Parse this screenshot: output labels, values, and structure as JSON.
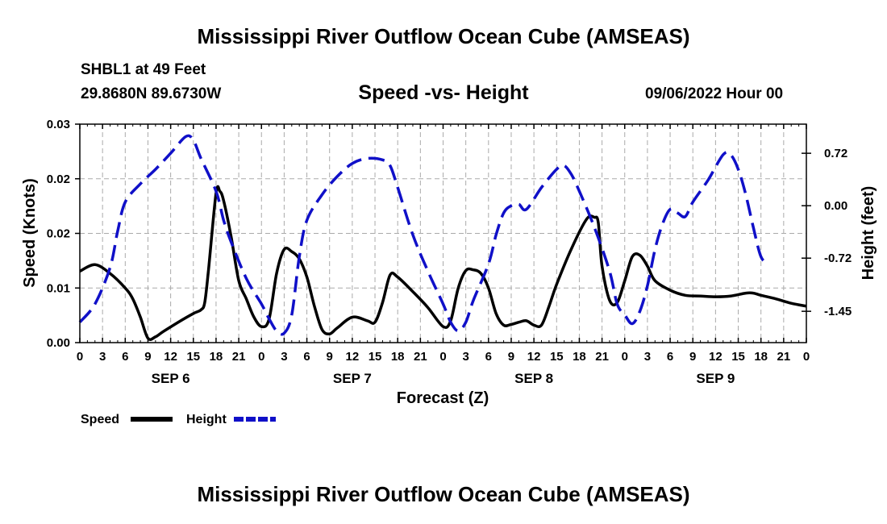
{
  "header": {
    "title": "Mississippi River Outflow Ocean Cube (AMSEAS)",
    "station": "SHBL1 at 49 Feet",
    "coords": "29.8680N  89.6730W",
    "subtitle": "Speed -vs- Height",
    "date": "09/06/2022 Hour 00"
  },
  "footer": {
    "title": "Mississippi River Outflow Ocean Cube (AMSEAS)"
  },
  "chart_data": {
    "type": "line",
    "title": "Speed -vs- Height",
    "xlabel": "Forecast (Z)",
    "ylabel": "Speed (Knots)",
    "y2label": "Height (feet)",
    "x_unit": "hours from 09/06 00Z",
    "xlim": [
      0,
      96
    ],
    "ylim": [
      0,
      0.03
    ],
    "y2lim": [
      -1.88,
      1.12
    ],
    "x_tick_values": [
      0,
      3,
      6,
      9,
      12,
      15,
      18,
      21,
      24,
      27,
      30,
      33,
      36,
      39,
      42,
      45,
      48,
      51,
      54,
      57,
      60,
      63,
      66,
      69,
      72,
      75,
      78,
      81,
      84,
      87,
      90,
      93,
      96
    ],
    "x_tick_labels": [
      "0",
      "3",
      "6",
      "9",
      "12",
      "15",
      "18",
      "21",
      "0",
      "3",
      "6",
      "9",
      "12",
      "15",
      "18",
      "21",
      "0",
      "3",
      "6",
      "9",
      "12",
      "15",
      "18",
      "21",
      "0",
      "3",
      "6",
      "9",
      "12",
      "15",
      "18",
      "21",
      "0"
    ],
    "day_labels": [
      {
        "x": 12,
        "label": "SEP 6"
      },
      {
        "x": 36,
        "label": "SEP 7"
      },
      {
        "x": 60,
        "label": "SEP 8"
      },
      {
        "x": 84,
        "label": "SEP 9"
      }
    ],
    "y_ticks": [
      {
        "v": 0.0,
        "label": "0.00"
      },
      {
        "v": 0.0075,
        "label": "0.01"
      },
      {
        "v": 0.015,
        "label": "0.02"
      },
      {
        "v": 0.0225,
        "label": "0.02"
      },
      {
        "v": 0.03,
        "label": "0.03"
      }
    ],
    "y2_ticks": [
      {
        "v": -1.45,
        "label": "-1.45"
      },
      {
        "v": -0.72,
        "label": "-0.72"
      },
      {
        "v": 0.0,
        "label": "0.00"
      },
      {
        "v": 0.72,
        "label": "0.72"
      }
    ],
    "series": [
      {
        "name": "Speed",
        "color": "#000000",
        "style": "solid",
        "axis": "left",
        "points": [
          [
            0,
            0.0098
          ],
          [
            2,
            0.0107
          ],
          [
            4,
            0.0095
          ],
          [
            6,
            0.0075
          ],
          [
            7,
            0.006
          ],
          [
            8,
            0.0035
          ],
          [
            9,
            0.0006
          ],
          [
            10,
            0.0008
          ],
          [
            11,
            0.0015
          ],
          [
            13,
            0.0028
          ],
          [
            15,
            0.004
          ],
          [
            16,
            0.0045
          ],
          [
            16.5,
            0.0055
          ],
          [
            17,
            0.01
          ],
          [
            18,
            0.0205
          ],
          [
            18.5,
            0.0208
          ],
          [
            19,
            0.0195
          ],
          [
            20,
            0.0145
          ],
          [
            21,
            0.0085
          ],
          [
            22,
            0.006
          ],
          [
            23,
            0.0035
          ],
          [
            24,
            0.0022
          ],
          [
            25,
            0.0032
          ],
          [
            26,
            0.0095
          ],
          [
            27,
            0.0128
          ],
          [
            28,
            0.0125
          ],
          [
            29,
            0.0115
          ],
          [
            30,
            0.009
          ],
          [
            31,
            0.005
          ],
          [
            32,
            0.0018
          ],
          [
            33,
            0.0012
          ],
          [
            34,
            0.002
          ],
          [
            36,
            0.0035
          ],
          [
            38,
            0.003
          ],
          [
            39,
            0.0028
          ],
          [
            40,
            0.0055
          ],
          [
            41,
            0.0093
          ],
          [
            42,
            0.009
          ],
          [
            44,
            0.007
          ],
          [
            46,
            0.0048
          ],
          [
            48,
            0.0022
          ],
          [
            49,
            0.003
          ],
          [
            50,
            0.0075
          ],
          [
            51,
            0.0099
          ],
          [
            52,
            0.01
          ],
          [
            53,
            0.0095
          ],
          [
            54,
            0.0075
          ],
          [
            55,
            0.004
          ],
          [
            56,
            0.0024
          ],
          [
            57,
            0.0025
          ],
          [
            58,
            0.0028
          ],
          [
            59,
            0.003
          ],
          [
            60,
            0.0024
          ],
          [
            61,
            0.0024
          ],
          [
            62,
            0.005
          ],
          [
            63,
            0.008
          ],
          [
            65,
            0.013
          ],
          [
            67,
            0.017
          ],
          [
            68,
            0.0172
          ],
          [
            68.5,
            0.0165
          ],
          [
            69,
            0.0105
          ],
          [
            70,
            0.0058
          ],
          [
            71,
            0.0055
          ],
          [
            72,
            0.0085
          ],
          [
            73,
            0.0118
          ],
          [
            74,
            0.012
          ],
          [
            75,
            0.0105
          ],
          [
            76,
            0.0085
          ],
          [
            78,
            0.0072
          ],
          [
            80,
            0.0065
          ],
          [
            82,
            0.0064
          ],
          [
            84,
            0.0063
          ],
          [
            86,
            0.0064
          ],
          [
            88,
            0.0068
          ],
          [
            89,
            0.0068
          ],
          [
            90,
            0.0065
          ],
          [
            92,
            0.006
          ],
          [
            94,
            0.0054
          ],
          [
            96,
            0.005
          ]
        ]
      },
      {
        "name": "Height",
        "color": "#1010c8",
        "style": "dashed",
        "axis": "right",
        "points": [
          [
            0,
            -1.6
          ],
          [
            2,
            -1.35
          ],
          [
            4,
            -0.85
          ],
          [
            5,
            -0.35
          ],
          [
            6,
            0.05
          ],
          [
            8,
            0.3
          ],
          [
            10,
            0.5
          ],
          [
            12,
            0.72
          ],
          [
            14,
            0.95
          ],
          [
            15,
            0.9
          ],
          [
            16,
            0.65
          ],
          [
            18,
            0.2
          ],
          [
            19,
            -0.2
          ],
          [
            20,
            -0.5
          ],
          [
            22,
            -1.0
          ],
          [
            24,
            -1.35
          ],
          [
            25,
            -1.55
          ],
          [
            26,
            -1.72
          ],
          [
            27,
            -1.75
          ],
          [
            28,
            -1.5
          ],
          [
            29,
            -0.7
          ],
          [
            30,
            -0.2
          ],
          [
            32,
            0.15
          ],
          [
            34,
            0.4
          ],
          [
            36,
            0.58
          ],
          [
            38,
            0.65
          ],
          [
            40,
            0.63
          ],
          [
            41,
            0.55
          ],
          [
            42,
            0.25
          ],
          [
            44,
            -0.4
          ],
          [
            46,
            -0.9
          ],
          [
            48,
            -1.35
          ],
          [
            49,
            -1.6
          ],
          [
            50,
            -1.72
          ],
          [
            51,
            -1.6
          ],
          [
            52,
            -1.3
          ],
          [
            54,
            -0.8
          ],
          [
            55,
            -0.4
          ],
          [
            56,
            -0.1
          ],
          [
            57,
            0.0
          ],
          [
            58,
            0.02
          ],
          [
            59,
            -0.05
          ],
          [
            61,
            0.25
          ],
          [
            63,
            0.5
          ],
          [
            64,
            0.55
          ],
          [
            65,
            0.42
          ],
          [
            66,
            0.2
          ],
          [
            68,
            -0.3
          ],
          [
            70,
            -0.9
          ],
          [
            71,
            -1.35
          ],
          [
            72,
            -1.5
          ],
          [
            73,
            -1.62
          ],
          [
            74,
            -1.45
          ],
          [
            75,
            -1.1
          ],
          [
            76,
            -0.6
          ],
          [
            77,
            -0.25
          ],
          [
            78,
            -0.05
          ],
          [
            79,
            -0.1
          ],
          [
            80,
            -0.15
          ],
          [
            81,
            0.05
          ],
          [
            83,
            0.35
          ],
          [
            85,
            0.7
          ],
          [
            86,
            0.7
          ],
          [
            87,
            0.5
          ],
          [
            88,
            0.15
          ],
          [
            89,
            -0.3
          ],
          [
            90,
            -0.7
          ],
          [
            91,
            -0.8
          ]
        ]
      }
    ]
  },
  "legend": [
    {
      "label": "Speed",
      "color": "#000000",
      "style": "solid"
    },
    {
      "label": "Height",
      "color": "#1010c8",
      "style": "dashed"
    }
  ]
}
